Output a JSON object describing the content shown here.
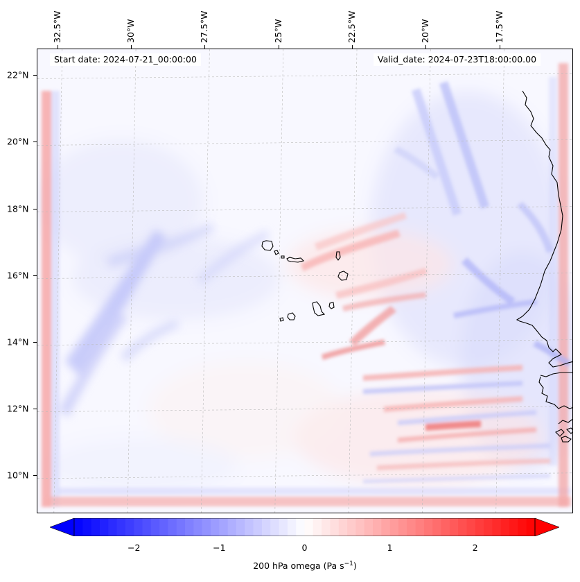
{
  "map": {
    "projection": "plate-carree",
    "lon_range": [
      -33.2,
      -15.0
    ],
    "lat_range": [
      8.85,
      22.8
    ],
    "top_labels": [
      {
        "text": "32.5°W",
        "lon": -32.5
      },
      {
        "text": "30°W",
        "lon": -30.0
      },
      {
        "text": "27.5°W",
        "lon": -27.5
      },
      {
        "text": "25°W",
        "lon": -25.0
      },
      {
        "text": "22.5°W",
        "lon": -22.5
      },
      {
        "text": "20°W",
        "lon": -20.0
      },
      {
        "text": "17.5°W",
        "lon": -17.5
      }
    ],
    "left_labels": [
      {
        "text": "22°N",
        "lat": 22
      },
      {
        "text": "20°N",
        "lat": 20
      },
      {
        "text": "18°N",
        "lat": 18
      },
      {
        "text": "16°N",
        "lat": 16
      },
      {
        "text": "14°N",
        "lat": 14
      },
      {
        "text": "12°N",
        "lat": 12
      },
      {
        "text": "10°N",
        "lat": 10
      }
    ],
    "gridlines": "dashed-light-gray"
  },
  "header": {
    "start_date": "Start date: 2024-07-21_00:00:00",
    "valid_date": "Valid_date: 2024-07-23T18:00:00.00"
  },
  "colorbar": {
    "colormap": "bwr",
    "range": [
      -2.7,
      2.7
    ],
    "extend": "both",
    "ticks": [
      {
        "text": "−2",
        "value": -2
      },
      {
        "text": "−1",
        "value": -1
      },
      {
        "text": "0",
        "value": 0
      },
      {
        "text": "1",
        "value": 1
      },
      {
        "text": "2",
        "value": 2
      }
    ],
    "label_main": "200 hPa omega (Pa s",
    "label_exp": "−1",
    "label_close": ")",
    "min_color": "#0000ff",
    "mid_color": "#ffffff",
    "max_color": "#ff0000"
  },
  "field": {
    "variable": "200 hPa omega",
    "units": "Pa s-1",
    "background_color": "#f8f8ff"
  }
}
